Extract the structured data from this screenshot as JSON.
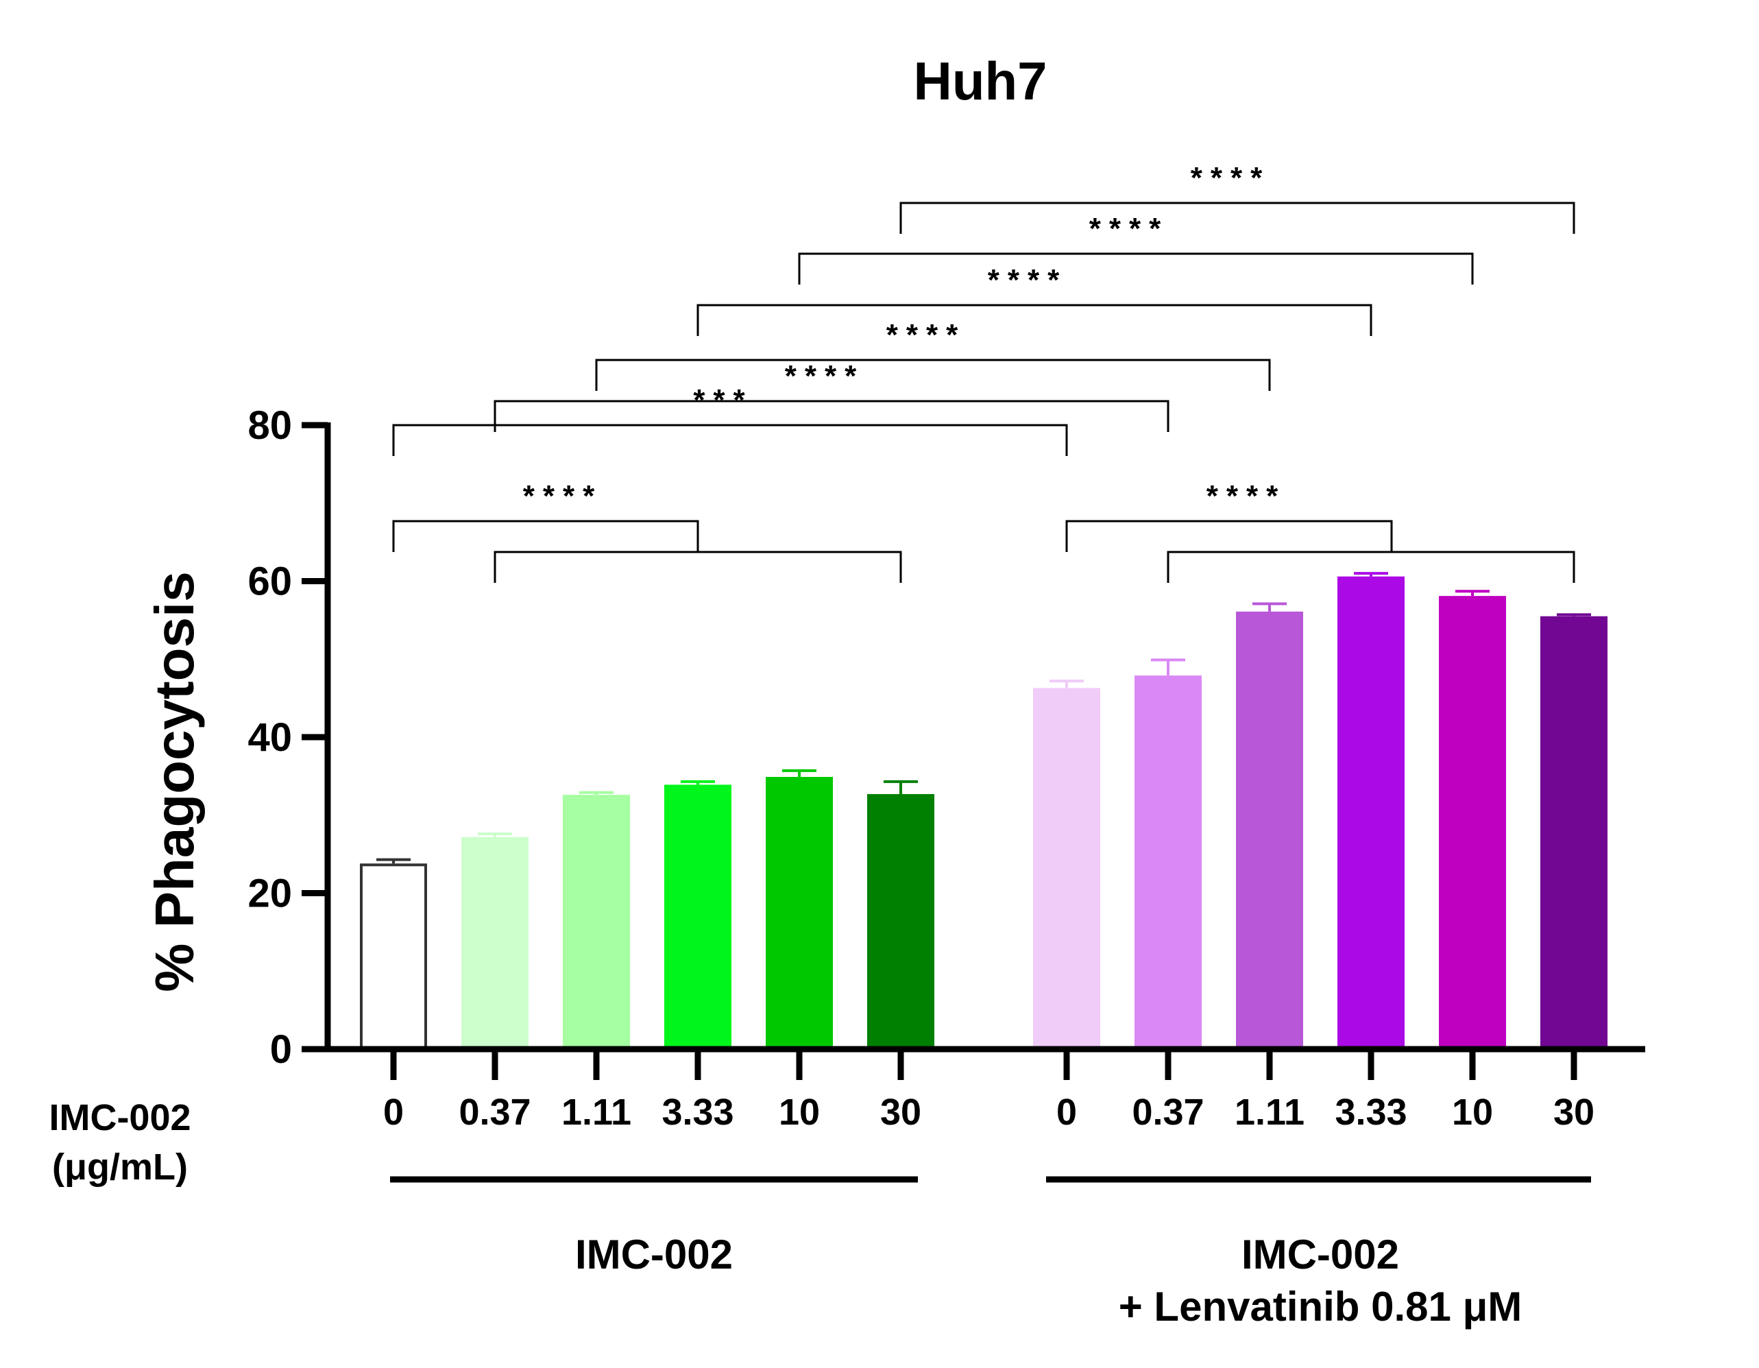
{
  "chart_data": {
    "type": "bar",
    "title": "Huh7",
    "ylabel": "% Phagocytosis",
    "xlabel": "IMC-002\n(μg/mL)",
    "ylim": [
      0,
      80
    ],
    "yticks": [
      0,
      20,
      40,
      60,
      80
    ],
    "grid": false,
    "groups": [
      {
        "label": "IMC-002"
      },
      {
        "label": "IMC-002\n+ Lenvatinib 0.81 μM"
      }
    ],
    "bars": [
      {
        "group": 0,
        "category": "0",
        "value": 23.8,
        "error": 0.5,
        "color": "#ffffff",
        "stroke": "#333333"
      },
      {
        "group": 0,
        "category": "0.37",
        "value": 27.2,
        "error": 0.4,
        "color": "#ccffcc"
      },
      {
        "group": 0,
        "category": "1.11",
        "value": 32.6,
        "error": 0.3,
        "color": "#a6ffa0"
      },
      {
        "group": 0,
        "category": "3.33",
        "value": 33.9,
        "error": 0.4,
        "color": "#00f51a"
      },
      {
        "group": 0,
        "category": "10",
        "value": 34.9,
        "error": 0.8,
        "color": "#00c800"
      },
      {
        "group": 0,
        "category": "30",
        "value": 32.7,
        "error": 1.6,
        "color": "#008000"
      },
      {
        "group": 1,
        "category": "0",
        "value": 46.3,
        "error": 0.9,
        "color": "#f0ccf8"
      },
      {
        "group": 1,
        "category": "0.37",
        "value": 47.9,
        "error": 2.0,
        "color": "#da88f4"
      },
      {
        "group": 1,
        "category": "1.11",
        "value": 56.1,
        "error": 1.0,
        "color": "#b858d8"
      },
      {
        "group": 1,
        "category": "3.33",
        "value": 60.6,
        "error": 0.4,
        "color": "#ab0ae6"
      },
      {
        "group": 1,
        "category": "10",
        "value": 58.1,
        "error": 0.6,
        "color": "#c000c0"
      },
      {
        "group": 1,
        "category": "30",
        "value": 55.5,
        "error": 0.2,
        "color": "#720794"
      }
    ],
    "comparisons": [
      {
        "from": [
          6
        ],
        "to": [
          7,
          8,
          9,
          10,
          11
        ],
        "label": "****"
      },
      {
        "from": [
          0
        ],
        "to": [
          1,
          2,
          3,
          4,
          5
        ],
        "label": "****"
      },
      {
        "from": [
          0
        ],
        "to": [
          6
        ],
        "label": "***"
      },
      {
        "from": [
          1
        ],
        "to": [
          7
        ],
        "label": "****"
      },
      {
        "from": [
          2
        ],
        "to": [
          8
        ],
        "label": "****"
      },
      {
        "from": [
          3
        ],
        "to": [
          9
        ],
        "label": "****"
      },
      {
        "from": [
          4
        ],
        "to": [
          10
        ],
        "label": "****"
      },
      {
        "from": [
          5
        ],
        "to": [
          11
        ],
        "label": "****"
      }
    ]
  }
}
